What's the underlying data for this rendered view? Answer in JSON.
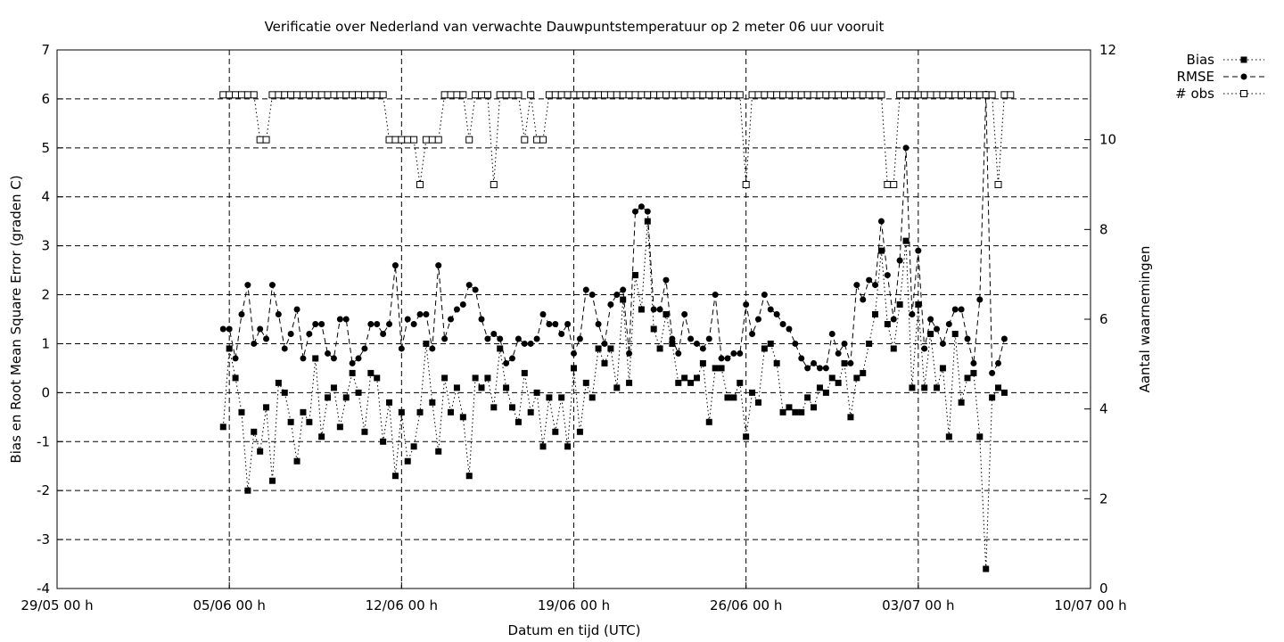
{
  "chart_data": {
    "type": "line",
    "title": "Verificatie over Nederland van verwachte Dauwpuntstemperatuur op 2 meter 06 uur vooruit",
    "xlabel": "Datum en tijd (UTC)",
    "ylabel": "Bias en Root Mean Square Error (graden C)",
    "y2label": "Aantal waarnemingen",
    "x_ticks": [
      "29/05 00 h",
      "05/06 00 h",
      "12/06 00 h",
      "19/06 00 h",
      "26/06 00 h",
      "03/07 00 h",
      "10/07 00 h"
    ],
    "xlim_days": [
      0,
      42
    ],
    "ylim": [
      -4,
      7
    ],
    "y2lim": [
      0,
      12
    ],
    "y_ticks": [
      -4,
      -3,
      -2,
      -1,
      0,
      1,
      2,
      3,
      4,
      5,
      6,
      7
    ],
    "y2_ticks": [
      0,
      2,
      4,
      6,
      8,
      10,
      12
    ],
    "grid": true,
    "legend_position": "outside-top-right",
    "x_step_days": 0.25,
    "x_start_day": 6.75,
    "series": [
      {
        "name": "Bias",
        "axis": "y",
        "style": "dotted",
        "marker": "filled-square",
        "values": [
          -0.7,
          0.9,
          0.3,
          -0.4,
          -2.0,
          -0.8,
          -1.2,
          -0.3,
          -1.8,
          0.2,
          0.0,
          -0.6,
          -1.4,
          -0.4,
          -0.6,
          0.7,
          -0.9,
          -0.1,
          0.1,
          -0.7,
          -0.1,
          0.4,
          0.0,
          -0.8,
          0.4,
          0.3,
          -1.0,
          -0.2,
          -1.7,
          -0.4,
          -1.4,
          -1.1,
          -0.4,
          1.0,
          -0.2,
          -1.2,
          0.3,
          -0.4,
          0.1,
          -0.5,
          -1.7,
          0.3,
          0.1,
          0.3,
          -0.3,
          0.9,
          0.1,
          -0.3,
          -0.6,
          0.4,
          -0.4,
          0.0,
          -1.1,
          -0.1,
          -0.8,
          -0.1,
          -1.1,
          0.5,
          -0.8,
          0.2,
          -0.1,
          0.9,
          0.6,
          0.9,
          0.1,
          1.9,
          0.2,
          2.4,
          1.7,
          3.5,
          1.3,
          0.9,
          1.6,
          1.0,
          0.2,
          0.3,
          0.2,
          0.3,
          0.6,
          -0.6,
          0.5,
          0.5,
          -0.1,
          -0.1,
          0.2,
          -0.9,
          0.0,
          -0.2,
          0.9,
          1.0,
          0.6,
          -0.4,
          -0.3,
          -0.4,
          -0.4,
          -0.1,
          -0.3,
          0.1,
          0.0,
          0.3,
          0.2,
          0.6,
          -0.5,
          0.3,
          0.4,
          1.0,
          1.6,
          2.9,
          1.4,
          0.9,
          1.8,
          3.1,
          0.1,
          1.8,
          0.1,
          1.2,
          0.1,
          0.5,
          -0.9,
          1.2,
          -0.2,
          0.3,
          0.4,
          -0.9,
          -3.6,
          -0.1,
          0.1,
          0.0
        ]
      },
      {
        "name": "RMSE",
        "axis": "y",
        "style": "dashed",
        "marker": "filled-circle",
        "values": [
          1.3,
          1.3,
          0.7,
          1.6,
          2.2,
          1.0,
          1.3,
          1.1,
          2.2,
          1.6,
          0.9,
          1.2,
          1.7,
          0.7,
          1.2,
          1.4,
          1.4,
          0.8,
          0.7,
          1.5,
          1.5,
          0.6,
          0.7,
          0.9,
          1.4,
          1.4,
          1.2,
          1.4,
          2.6,
          0.9,
          1.5,
          1.4,
          1.6,
          1.6,
          0.9,
          2.6,
          1.1,
          1.5,
          1.7,
          1.8,
          2.2,
          2.1,
          1.5,
          1.1,
          1.2,
          1.1,
          0.6,
          0.7,
          1.1,
          1.0,
          1.0,
          1.1,
          1.6,
          1.4,
          1.4,
          1.2,
          1.4,
          0.8,
          1.1,
          2.1,
          2.0,
          1.4,
          1.0,
          1.8,
          2.0,
          2.1,
          0.8,
          3.7,
          3.8,
          3.7,
          1.7,
          1.7,
          2.3,
          1.1,
          0.8,
          1.6,
          1.1,
          1.0,
          0.9,
          1.1,
          2.0,
          0.7,
          0.7,
          0.8,
          0.8,
          1.8,
          1.2,
          1.5,
          2.0,
          1.7,
          1.6,
          1.4,
          1.3,
          1.0,
          0.7,
          0.5,
          0.6,
          0.5,
          0.5,
          1.2,
          0.8,
          1.0,
          0.6,
          2.2,
          1.9,
          2.3,
          2.2,
          3.5,
          2.4,
          1.5,
          2.7,
          5.0,
          1.6,
          2.9,
          0.9,
          1.5,
          1.3,
          1.0,
          1.4,
          1.7,
          1.7,
          1.1,
          0.6,
          1.9,
          6.1,
          0.4,
          0.6,
          1.1
        ]
      },
      {
        "name": "# obs",
        "axis": "y2",
        "style": "dotted",
        "marker": "open-square",
        "values": [
          11,
          11,
          11,
          11,
          11,
          11,
          10,
          10,
          11,
          11,
          11,
          11,
          11,
          11,
          11,
          11,
          11,
          11,
          11,
          11,
          11,
          11,
          11,
          11,
          11,
          11,
          11,
          10,
          10,
          10,
          10,
          10,
          9,
          10,
          10,
          10,
          11,
          11,
          11,
          11,
          10,
          11,
          11,
          11,
          9,
          11,
          11,
          11,
          11,
          10,
          11,
          10,
          10,
          11,
          11,
          11,
          11,
          11,
          11,
          11,
          11,
          11,
          11,
          11,
          11,
          11,
          11,
          11,
          11,
          11,
          11,
          11,
          11,
          11,
          11,
          11,
          11,
          11,
          11,
          11,
          11,
          11,
          11,
          11,
          11,
          9,
          11,
          11,
          11,
          11,
          11,
          11,
          11,
          11,
          11,
          11,
          11,
          11,
          11,
          11,
          11,
          11,
          11,
          11,
          11,
          11,
          11,
          11,
          9,
          9,
          11,
          11,
          11,
          11,
          11,
          11,
          11,
          11,
          11,
          11,
          11,
          11,
          11,
          11,
          11,
          11,
          9,
          11,
          11
        ]
      }
    ]
  }
}
